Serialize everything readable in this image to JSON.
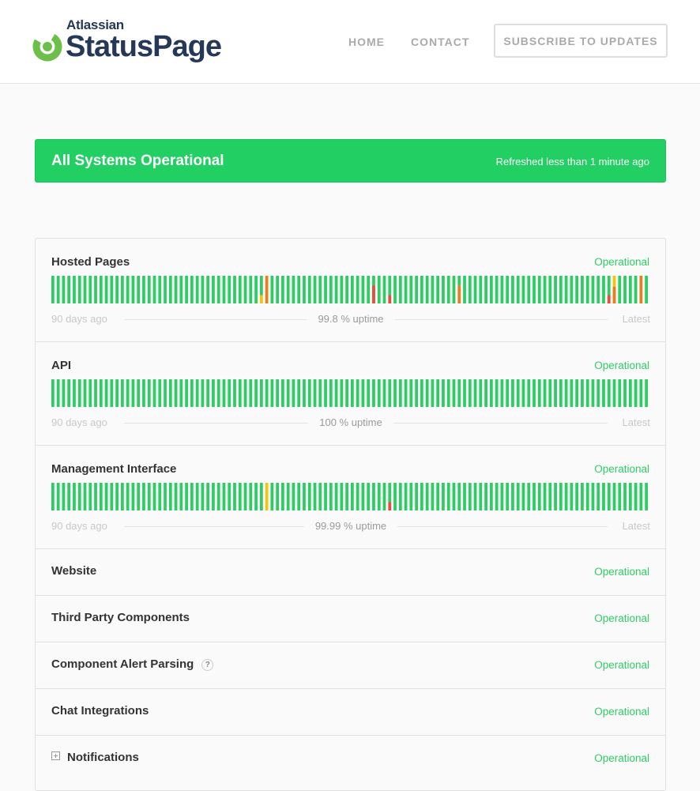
{
  "brand": {
    "company": "Atlassian",
    "product": "StatusPage",
    "icon": "statuspage-logo-icon"
  },
  "nav": {
    "home": "HOME",
    "contact": "CONTACT",
    "subscribe": "SUBSCRIBE TO UPDATES"
  },
  "banner": {
    "status": "All Systems Operational",
    "refreshed": "Refreshed less than 1 minute ago"
  },
  "colors": {
    "operational": "#2fcc66",
    "bar_ok": "#2fcc66",
    "bar_minor": "#f1c40f",
    "bar_partial": "#e67e22",
    "bar_major": "#e74c3c",
    "banner": "#21cf62"
  },
  "components": [
    {
      "name": "Hosted Pages",
      "status": "Operational",
      "uptime": "99.8 % uptime",
      "left_label": "90 days ago",
      "right_label": "Latest",
      "day_bars": [
        {
          "day": 39,
          "kind": "yellow",
          "level": 0.3
        },
        {
          "day": 40,
          "kind": "orange",
          "level": 1.0
        },
        {
          "day": 60,
          "kind": "yellow",
          "level": 0.3
        },
        {
          "day": 60,
          "kind": "red",
          "level": 0.65,
          "stack": true
        },
        {
          "day": 63,
          "kind": "red",
          "level": 0.3
        },
        {
          "day": 76,
          "kind": "orange",
          "level": 0.65
        },
        {
          "day": 104,
          "kind": "red",
          "level": 0.3
        },
        {
          "day": 105,
          "kind": "yellow",
          "level": 1.0
        },
        {
          "day": 105,
          "kind": "orange",
          "level": 0.6,
          "stack": true
        },
        {
          "day": 110,
          "kind": "orange",
          "level": 1.0
        }
      ]
    },
    {
      "name": "API",
      "status": "Operational",
      "uptime": "100 % uptime",
      "left_label": "90 days ago",
      "right_label": "Latest",
      "day_bars": []
    },
    {
      "name": "Management Interface",
      "status": "Operational",
      "uptime": "99.99 % uptime",
      "left_label": "90 days ago",
      "right_label": "Latest",
      "day_bars": [
        {
          "day": 40,
          "kind": "yellow",
          "level": 1.0
        },
        {
          "day": 63,
          "kind": "red",
          "level": 0.3
        }
      ]
    },
    {
      "name": "Website",
      "status": "Operational"
    },
    {
      "name": "Third Party Components",
      "status": "Operational"
    },
    {
      "name": "Component Alert Parsing",
      "status": "Operational",
      "help": "?"
    },
    {
      "name": "Chat Integrations",
      "status": "Operational"
    },
    {
      "name": "Notifications",
      "status": "Operational",
      "expandable": true
    }
  ]
}
